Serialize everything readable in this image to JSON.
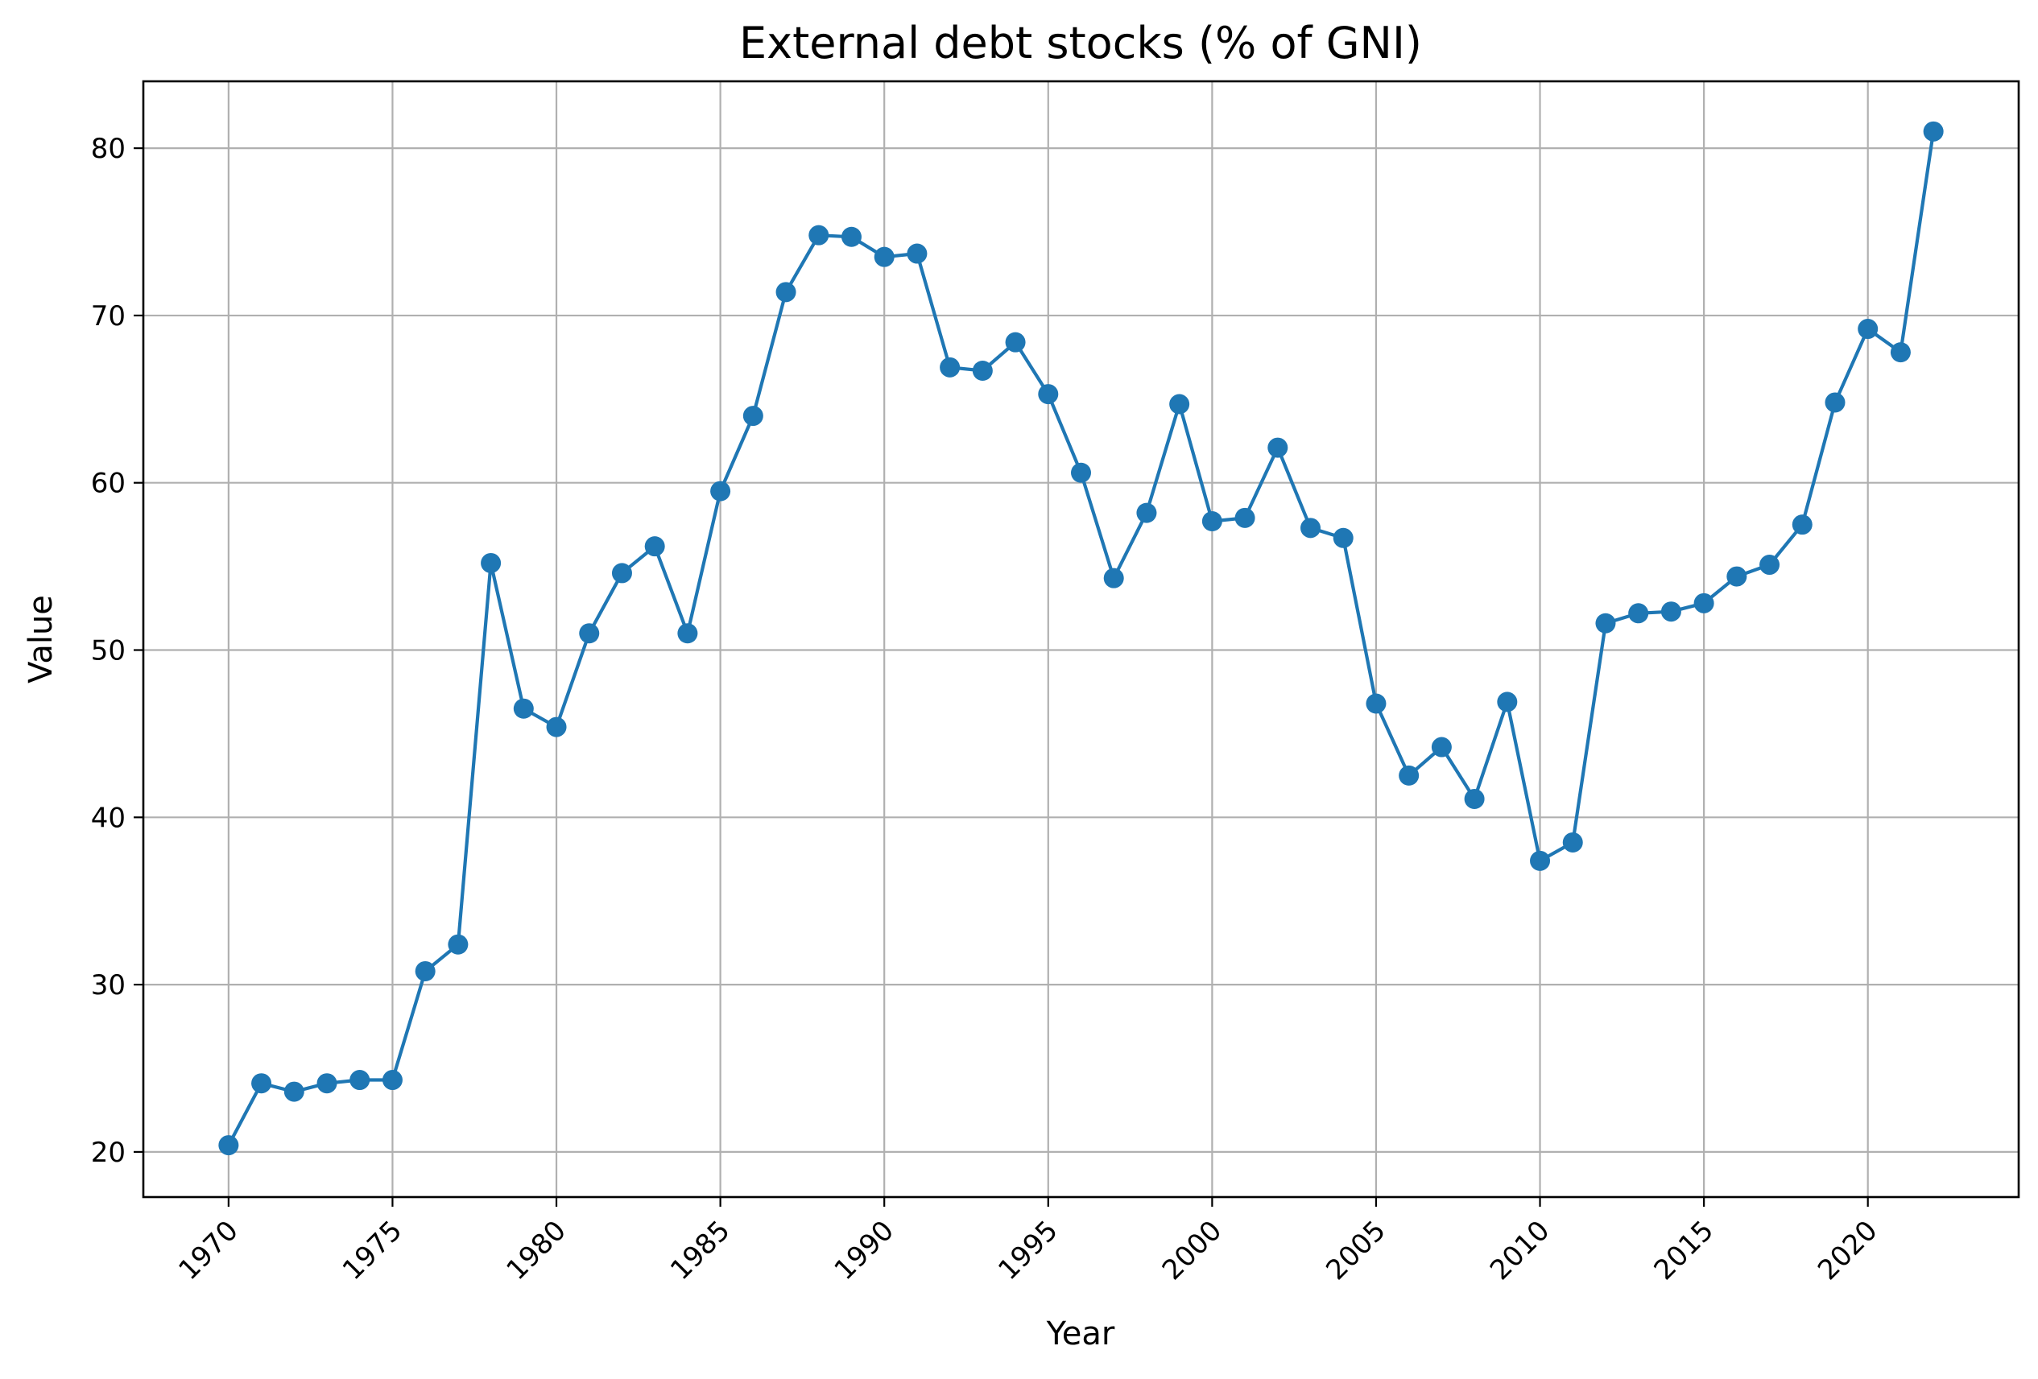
{
  "chart_data": {
    "type": "line",
    "title": "External debt stocks (% of GNI)",
    "xlabel": "Year",
    "ylabel": "Value",
    "xlim": [
      1967.4,
      2024.6
    ],
    "ylim": [
      17.3,
      84.0
    ],
    "xticks": [
      1970,
      1975,
      1980,
      1985,
      1990,
      1995,
      2000,
      2005,
      2010,
      2015,
      2020
    ],
    "yticks": [
      20,
      30,
      40,
      50,
      60,
      70,
      80
    ],
    "grid": true,
    "colors": {
      "line": "#1f77b4",
      "grid": "#b0b0b0",
      "frame": "#000000"
    },
    "x": [
      1970,
      1971,
      1972,
      1973,
      1974,
      1975,
      1976,
      1977,
      1978,
      1979,
      1980,
      1981,
      1982,
      1983,
      1984,
      1985,
      1986,
      1987,
      1988,
      1989,
      1990,
      1991,
      1992,
      1993,
      1994,
      1995,
      1996,
      1997,
      1998,
      1999,
      2000,
      2001,
      2002,
      2003,
      2004,
      2005,
      2006,
      2007,
      2008,
      2009,
      2010,
      2011,
      2012,
      2013,
      2014,
      2015,
      2016,
      2017,
      2018,
      2019,
      2020,
      2021,
      2022
    ],
    "values": [
      20.4,
      24.1,
      23.6,
      24.1,
      24.3,
      24.3,
      30.8,
      32.4,
      55.2,
      46.5,
      45.4,
      51.0,
      54.6,
      56.2,
      51.0,
      59.5,
      64.0,
      71.4,
      74.8,
      74.7,
      73.5,
      73.7,
      66.9,
      66.7,
      68.4,
      65.3,
      60.6,
      54.3,
      58.2,
      64.7,
      57.7,
      57.9,
      62.1,
      57.3,
      56.7,
      46.8,
      42.5,
      44.2,
      41.1,
      46.9,
      37.4,
      38.5,
      51.6,
      52.2,
      52.3,
      52.8,
      54.4,
      55.1,
      57.5,
      64.8,
      69.2,
      67.8,
      81.0
    ]
  }
}
